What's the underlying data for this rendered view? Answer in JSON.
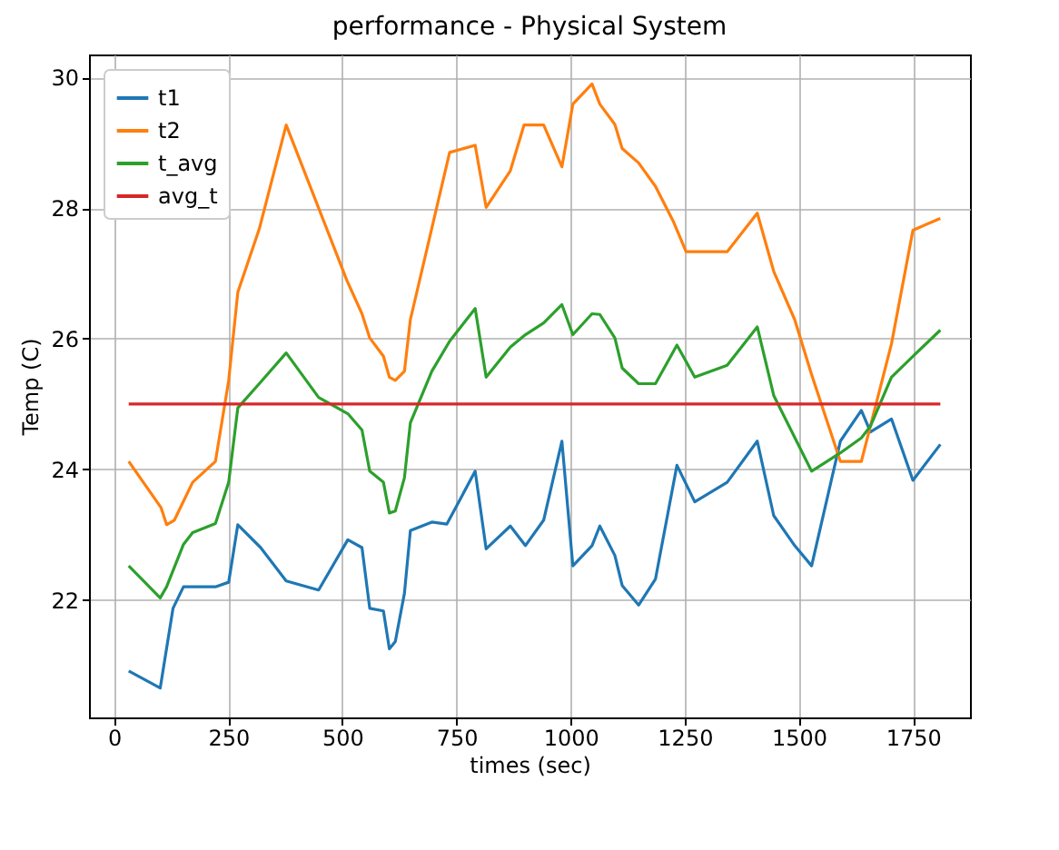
{
  "chart_data": {
    "type": "line",
    "title": "performance - Physical System",
    "xlabel": "times (sec)",
    "ylabel": "Temp (C)",
    "xlim": [
      -55,
      1875
    ],
    "ylim": [
      20.2,
      30.35
    ],
    "xticks": [
      0,
      250,
      500,
      750,
      1000,
      1250,
      1500,
      1750
    ],
    "yticks": [
      22,
      24,
      26,
      28,
      30
    ],
    "grid": true,
    "legend": "top left",
    "line_style": "solid",
    "series": [
      {
        "name": "t1",
        "color": "#1f77b4",
        "x": [
          32,
          101,
          129,
          152,
          222,
          251,
          271,
          321,
          377,
          448,
          512,
          543,
          560,
          590,
          603,
          616,
          636,
          649,
          696,
          729,
          791,
          815,
          868,
          901,
          941,
          981,
          1005,
          1047,
          1064,
          1097,
          1113,
          1149,
          1186,
          1233,
          1272,
          1343,
          1409,
          1445,
          1491,
          1528,
          1591,
          1637,
          1657,
          1703,
          1750,
          1810
        ],
        "values": [
          20.91,
          20.65,
          21.87,
          22.2,
          22.2,
          22.27,
          23.15,
          22.8,
          22.29,
          22.15,
          22.92,
          22.8,
          21.87,
          21.83,
          21.25,
          21.36,
          22.1,
          23.06,
          23.19,
          23.16,
          23.97,
          22.78,
          23.13,
          22.83,
          23.22,
          24.43,
          22.52,
          22.83,
          23.13,
          22.68,
          22.22,
          21.92,
          22.32,
          24.06,
          23.5,
          23.8,
          24.43,
          23.29,
          22.83,
          22.52,
          24.43,
          24.9,
          24.57,
          24.77,
          23.83,
          24.38
        ]
      },
      {
        "name": "t2",
        "color": "#ff7f0e",
        "x": [
          32,
          103,
          115,
          132,
          172,
          222,
          251,
          271,
          318,
          377,
          510,
          543,
          560,
          590,
          603,
          616,
          636,
          649,
          735,
          791,
          815,
          868,
          898,
          941,
          981,
          1005,
          1047,
          1064,
          1097,
          1113,
          1149,
          1186,
          1226,
          1253,
          1343,
          1409,
          1445,
          1491,
          1528,
          1591,
          1637,
          1703,
          1750,
          1810
        ],
        "values": [
          24.12,
          23.41,
          23.15,
          23.22,
          23.8,
          24.12,
          25.36,
          26.71,
          27.68,
          29.27,
          26.89,
          26.38,
          26.01,
          25.73,
          25.41,
          25.36,
          25.5,
          26.29,
          28.85,
          28.96,
          28.01,
          28.57,
          29.27,
          29.27,
          28.63,
          29.59,
          29.9,
          29.59,
          29.28,
          28.91,
          28.69,
          28.33,
          27.78,
          27.33,
          27.33,
          27.92,
          27.03,
          26.29,
          25.45,
          24.12,
          24.12,
          25.92,
          27.66,
          27.84
        ]
      },
      {
        "name": "t_avg",
        "color": "#2ca02c",
        "x": [
          32,
          101,
          115,
          152,
          172,
          222,
          251,
          271,
          318,
          377,
          448,
          512,
          543,
          560,
          590,
          603,
          616,
          636,
          649,
          696,
          735,
          791,
          815,
          868,
          901,
          941,
          981,
          1005,
          1047,
          1064,
          1097,
          1113,
          1149,
          1186,
          1233,
          1272,
          1343,
          1409,
          1445,
          1528,
          1591,
          1637,
          1657,
          1703,
          1750,
          1810
        ],
        "values": [
          22.52,
          22.03,
          22.2,
          22.85,
          23.03,
          23.17,
          23.8,
          24.94,
          25.31,
          25.78,
          25.1,
          24.85,
          24.6,
          23.97,
          23.8,
          23.33,
          23.36,
          23.87,
          24.71,
          25.5,
          25.96,
          26.46,
          25.41,
          25.87,
          26.06,
          26.24,
          26.52,
          26.06,
          26.38,
          26.37,
          26.01,
          25.55,
          25.31,
          25.31,
          25.9,
          25.41,
          25.59,
          26.18,
          25.13,
          23.97,
          24.25,
          24.48,
          24.66,
          25.41,
          25.73,
          26.13
        ]
      },
      {
        "name": "avg_t",
        "color": "#d62728",
        "x": [
          32,
          1810
        ],
        "values": [
          25,
          25
        ]
      }
    ]
  }
}
